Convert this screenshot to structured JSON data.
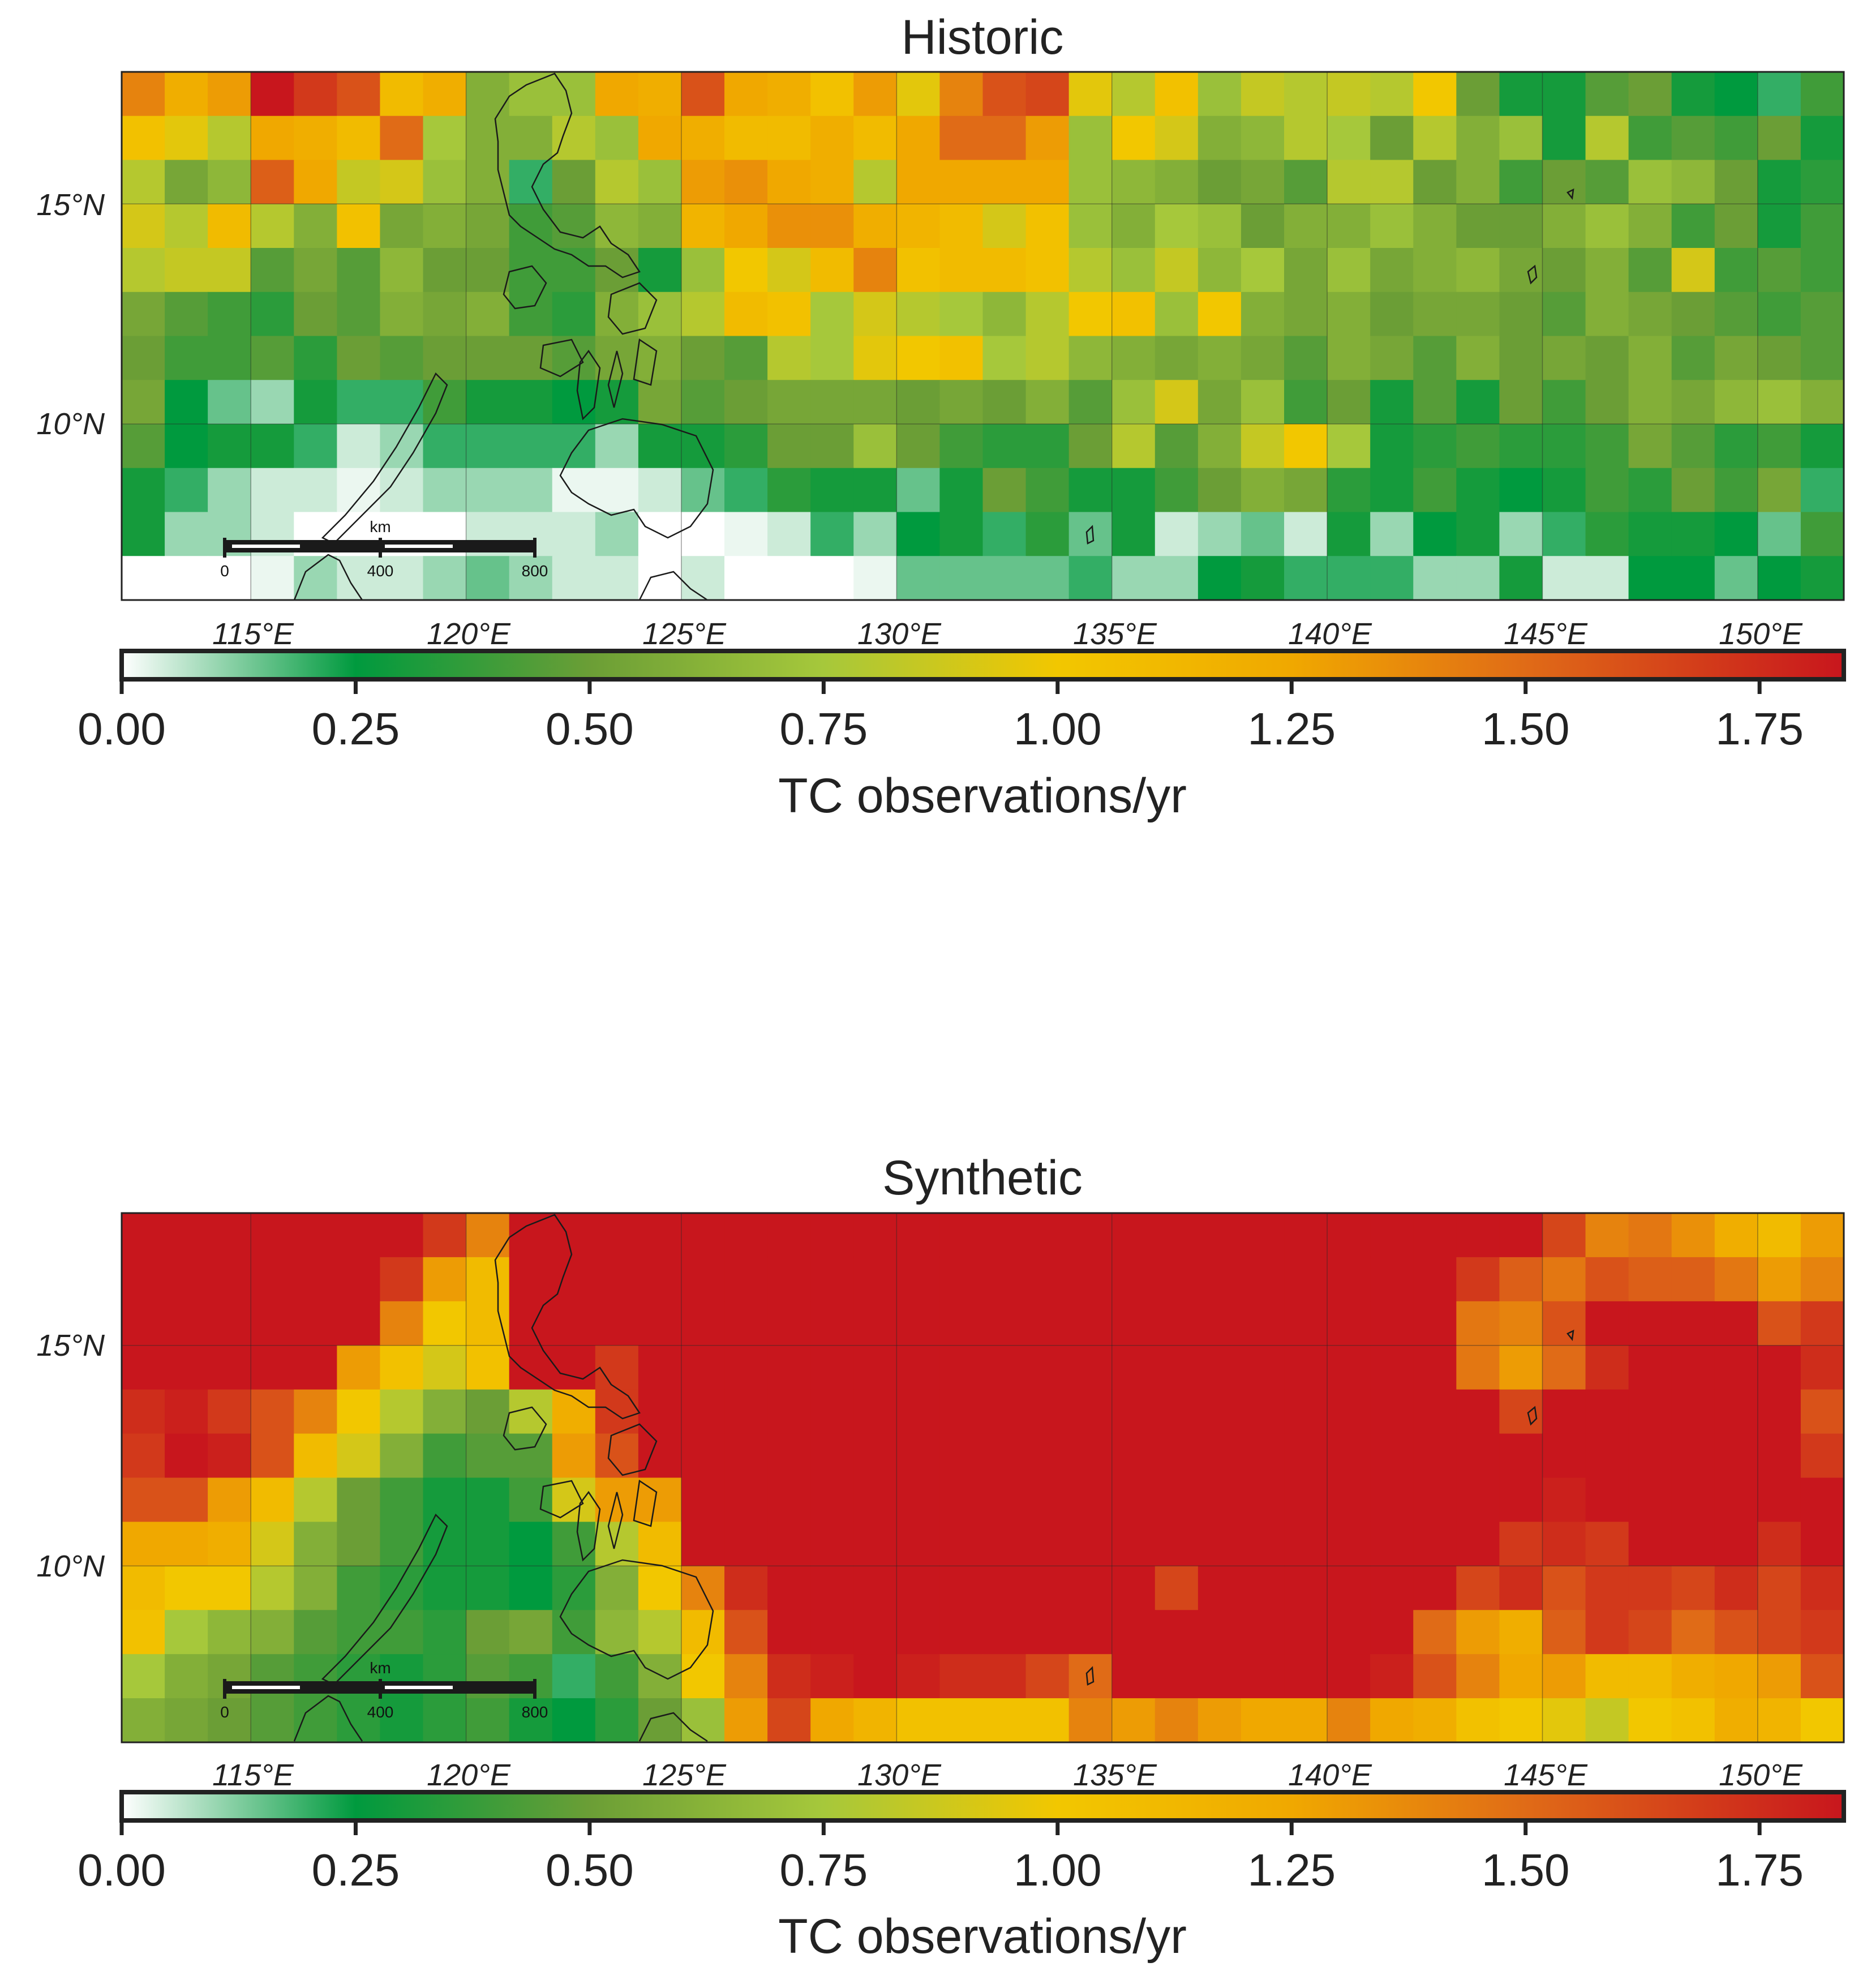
{
  "colormap": {
    "vmin": 0,
    "vmax": 1.84,
    "stops": [
      [
        0.0,
        "#ffffff"
      ],
      [
        0.25,
        "#009a3e"
      ],
      [
        0.5,
        "#6b9e36"
      ],
      [
        0.75,
        "#a6c83b"
      ],
      [
        1.0,
        "#f2c700"
      ],
      [
        1.25,
        "#f0a800"
      ],
      [
        1.5,
        "#e06b17"
      ],
      [
        1.84,
        "#c8161d"
      ]
    ]
  },
  "panels": [
    {
      "title": "Historic",
      "y_ticks": [
        "15°N",
        "10°N"
      ],
      "x_ticks": [
        "115°E",
        "120°E",
        "125°E",
        "130°E",
        "135°E",
        "140°E",
        "145°E",
        "150°E"
      ],
      "colorbar": {
        "ticks": [
          "0.00",
          "0.25",
          "0.50",
          "0.75",
          "1.00",
          "1.25",
          "1.50",
          "1.75"
        ],
        "label": "TC observations/yr"
      },
      "scalebar": {
        "unit": "km",
        "labels": [
          "0",
          "400",
          "800"
        ]
      }
    },
    {
      "title": "Synthetic",
      "y_ticks": [
        "15°N",
        "10°N"
      ],
      "x_ticks": [
        "115°E",
        "120°E",
        "125°E",
        "130°E",
        "135°E",
        "140°E",
        "145°E",
        "150°E"
      ],
      "colorbar": {
        "ticks": [
          "0.00",
          "0.25",
          "0.50",
          "0.75",
          "1.00",
          "1.25",
          "1.50",
          "1.75"
        ],
        "label": "TC observations/yr"
      },
      "scalebar": {
        "unit": "km",
        "labels": [
          "0",
          "400",
          "800"
        ]
      }
    }
  ],
  "chart_data": [
    {
      "type": "heatmap",
      "title": "Historic",
      "colorbar_label": "TC observations/yr",
      "lon_range_degE": [
        112,
        152
      ],
      "lat_range_degN": [
        6,
        18
      ],
      "cell_size_deg": 1,
      "rows_order": "north_to_south",
      "values": [
        [
          1.4,
          1.2,
          1.3,
          1.84,
          1.7,
          1.6,
          1.1,
          1.2,
          0.6,
          0.7,
          0.7,
          1.25,
          1.2,
          1.6,
          1.25,
          1.2,
          1.05,
          1.3,
          0.95,
          1.4,
          1.6,
          1.65,
          0.95,
          0.8,
          1.05,
          0.7,
          0.85,
          0.8,
          0.85,
          0.8,
          1.0,
          0.5,
          0.3,
          0.3,
          0.45,
          0.5,
          0.3,
          0.25,
          0.2,
          0.4
        ],
        [
          1.05,
          0.95,
          0.8,
          1.25,
          1.2,
          1.1,
          1.5,
          0.75,
          0.6,
          0.6,
          0.8,
          0.7,
          1.25,
          1.2,
          1.1,
          1.1,
          1.2,
          1.1,
          1.25,
          1.5,
          1.5,
          1.3,
          0.7,
          1.0,
          0.9,
          0.6,
          0.65,
          0.8,
          0.75,
          0.5,
          0.8,
          0.6,
          0.7,
          0.3,
          0.8,
          0.4,
          0.45,
          0.4,
          0.5,
          0.3
        ],
        [
          0.8,
          0.55,
          0.65,
          1.55,
          1.25,
          0.85,
          0.9,
          0.7,
          0.6,
          0.2,
          0.5,
          0.8,
          0.7,
          1.3,
          1.35,
          1.25,
          1.2,
          0.8,
          1.25,
          1.25,
          1.25,
          1.25,
          0.7,
          0.65,
          0.6,
          0.5,
          0.55,
          0.45,
          0.8,
          0.8,
          0.5,
          0.6,
          0.4,
          0.5,
          0.45,
          0.7,
          0.65,
          0.5,
          0.3,
          0.35
        ],
        [
          0.9,
          0.8,
          1.1,
          0.8,
          0.6,
          1.05,
          0.55,
          0.6,
          0.55,
          0.4,
          0.45,
          0.65,
          0.6,
          1.15,
          1.25,
          1.35,
          1.35,
          1.2,
          1.15,
          1.1,
          0.9,
          1.05,
          0.7,
          0.6,
          0.75,
          0.7,
          0.5,
          0.6,
          0.6,
          0.7,
          0.6,
          0.5,
          0.5,
          0.6,
          0.7,
          0.6,
          0.4,
          0.5,
          0.3,
          0.4
        ],
        [
          0.8,
          0.85,
          0.85,
          0.45,
          0.55,
          0.45,
          0.65,
          0.5,
          0.5,
          0.4,
          0.4,
          0.5,
          0.3,
          0.7,
          1.0,
          0.9,
          1.1,
          1.4,
          1.05,
          1.1,
          1.1,
          1.05,
          0.8,
          0.7,
          0.85,
          0.65,
          0.75,
          0.55,
          0.7,
          0.55,
          0.6,
          0.65,
          0.55,
          0.5,
          0.6,
          0.45,
          0.9,
          0.4,
          0.45,
          0.4
        ],
        [
          0.55,
          0.45,
          0.4,
          0.35,
          0.5,
          0.45,
          0.6,
          0.55,
          0.6,
          0.4,
          0.35,
          0.6,
          0.7,
          0.8,
          1.1,
          1.05,
          0.75,
          0.9,
          0.8,
          0.75,
          0.65,
          0.8,
          1.0,
          1.05,
          0.7,
          1.0,
          0.6,
          0.55,
          0.6,
          0.5,
          0.55,
          0.55,
          0.5,
          0.45,
          0.6,
          0.55,
          0.5,
          0.45,
          0.4,
          0.45
        ],
        [
          0.5,
          0.4,
          0.4,
          0.45,
          0.35,
          0.5,
          0.45,
          0.5,
          0.5,
          0.5,
          0.45,
          0.55,
          0.6,
          0.5,
          0.45,
          0.8,
          0.75,
          0.95,
          1.0,
          1.05,
          0.75,
          0.8,
          0.65,
          0.6,
          0.55,
          0.6,
          0.55,
          0.45,
          0.6,
          0.55,
          0.45,
          0.6,
          0.5,
          0.55,
          0.5,
          0.6,
          0.45,
          0.55,
          0.5,
          0.45
        ],
        [
          0.55,
          0.25,
          0.15,
          0.1,
          0.3,
          0.2,
          0.2,
          0.4,
          0.3,
          0.3,
          0.25,
          0.3,
          0.55,
          0.45,
          0.5,
          0.55,
          0.55,
          0.55,
          0.5,
          0.55,
          0.5,
          0.6,
          0.45,
          0.7,
          0.9,
          0.55,
          0.7,
          0.4,
          0.5,
          0.3,
          0.45,
          0.3,
          0.5,
          0.4,
          0.5,
          0.6,
          0.55,
          0.65,
          0.7,
          0.6
        ],
        [
          0.45,
          0.25,
          0.3,
          0.3,
          0.2,
          0.05,
          0.1,
          0.2,
          0.2,
          0.2,
          0.2,
          0.1,
          0.3,
          0.3,
          0.35,
          0.5,
          0.5,
          0.7,
          0.5,
          0.4,
          0.35,
          0.35,
          0.5,
          0.8,
          0.45,
          0.6,
          0.85,
          1.0,
          0.75,
          0.3,
          0.35,
          0.4,
          0.35,
          0.35,
          0.4,
          0.55,
          0.45,
          0.35,
          0.4,
          0.3
        ],
        [
          0.3,
          0.2,
          0.1,
          0.05,
          0.05,
          0.02,
          0.05,
          0.1,
          0.1,
          0.1,
          0.02,
          0.02,
          0.05,
          0.15,
          0.2,
          0.35,
          0.3,
          0.3,
          0.15,
          0.3,
          0.5,
          0.4,
          0.3,
          0.3,
          0.4,
          0.5,
          0.6,
          0.55,
          0.35,
          0.3,
          0.4,
          0.3,
          0.25,
          0.3,
          0.4,
          0.35,
          0.5,
          0.4,
          0.55,
          0.2
        ],
        [
          0.3,
          0.1,
          0.1,
          0.05,
          0.0,
          0.0,
          0.0,
          0.0,
          0.05,
          0.05,
          0.05,
          0.1,
          0.0,
          0.0,
          0.02,
          0.05,
          0.2,
          0.1,
          0.25,
          0.3,
          0.2,
          0.35,
          0.15,
          0.3,
          0.05,
          0.1,
          0.15,
          0.05,
          0.3,
          0.1,
          0.25,
          0.3,
          0.1,
          0.2,
          0.35,
          0.3,
          0.3,
          0.25,
          0.15,
          0.4
        ],
        [
          0.0,
          0.0,
          0.0,
          0.02,
          0.1,
          0.05,
          0.05,
          0.1,
          0.15,
          0.1,
          0.05,
          0.05,
          0.0,
          0.05,
          0.0,
          0.0,
          0.0,
          0.02,
          0.15,
          0.15,
          0.15,
          0.15,
          0.2,
          0.1,
          0.1,
          0.25,
          0.3,
          0.2,
          0.2,
          0.2,
          0.1,
          0.1,
          0.3,
          0.05,
          0.05,
          0.25,
          0.25,
          0.15,
          0.25,
          0.3
        ]
      ]
    },
    {
      "type": "heatmap",
      "title": "Synthetic",
      "colorbar_label": "TC observations/yr",
      "lon_range_degE": [
        112,
        152
      ],
      "lat_range_degN": [
        6,
        18
      ],
      "cell_size_deg": 1,
      "rows_order": "north_to_south",
      "values": [
        [
          1.84,
          1.84,
          1.84,
          1.84,
          1.84,
          1.84,
          1.84,
          1.7,
          1.4,
          1.84,
          1.84,
          1.84,
          1.84,
          1.84,
          1.84,
          1.84,
          1.84,
          1.84,
          1.84,
          1.84,
          1.84,
          1.84,
          1.84,
          1.84,
          1.84,
          1.84,
          1.84,
          1.84,
          1.84,
          1.84,
          1.84,
          1.84,
          1.84,
          1.65,
          1.4,
          1.45,
          1.35,
          1.2,
          1.1,
          1.3
        ],
        [
          1.84,
          1.84,
          1.84,
          1.84,
          1.84,
          1.84,
          1.7,
          1.3,
          1.1,
          1.84,
          1.84,
          1.84,
          1.84,
          1.84,
          1.84,
          1.84,
          1.84,
          1.84,
          1.84,
          1.84,
          1.84,
          1.84,
          1.84,
          1.84,
          1.84,
          1.84,
          1.84,
          1.84,
          1.84,
          1.84,
          1.84,
          1.7,
          1.55,
          1.45,
          1.6,
          1.55,
          1.55,
          1.45,
          1.3,
          1.4
        ],
        [
          1.84,
          1.84,
          1.84,
          1.84,
          1.84,
          1.84,
          1.4,
          1.0,
          1.1,
          1.84,
          1.84,
          1.84,
          1.84,
          1.84,
          1.84,
          1.84,
          1.84,
          1.84,
          1.84,
          1.84,
          1.84,
          1.84,
          1.84,
          1.84,
          1.84,
          1.84,
          1.84,
          1.84,
          1.84,
          1.84,
          1.84,
          1.45,
          1.4,
          1.6,
          1.84,
          1.84,
          1.84,
          1.84,
          1.6,
          1.7
        ],
        [
          1.84,
          1.84,
          1.84,
          1.84,
          1.84,
          1.3,
          1.05,
          0.9,
          1.05,
          1.84,
          1.84,
          1.7,
          1.84,
          1.84,
          1.84,
          1.84,
          1.84,
          1.84,
          1.84,
          1.84,
          1.84,
          1.84,
          1.84,
          1.84,
          1.84,
          1.84,
          1.84,
          1.84,
          1.84,
          1.84,
          1.84,
          1.45,
          1.3,
          1.5,
          1.75,
          1.84,
          1.84,
          1.84,
          1.84,
          1.75
        ],
        [
          1.75,
          1.8,
          1.7,
          1.6,
          1.4,
          1.0,
          0.8,
          0.6,
          0.5,
          0.8,
          1.2,
          1.7,
          1.84,
          1.84,
          1.84,
          1.84,
          1.84,
          1.84,
          1.84,
          1.84,
          1.84,
          1.84,
          1.84,
          1.84,
          1.84,
          1.84,
          1.84,
          1.84,
          1.84,
          1.84,
          1.84,
          1.84,
          1.65,
          1.84,
          1.84,
          1.84,
          1.84,
          1.84,
          1.84,
          1.6
        ],
        [
          1.7,
          1.84,
          1.8,
          1.6,
          1.1,
          0.9,
          0.6,
          0.4,
          0.45,
          0.45,
          1.3,
          1.6,
          1.84,
          1.84,
          1.84,
          1.84,
          1.84,
          1.84,
          1.84,
          1.84,
          1.84,
          1.84,
          1.84,
          1.84,
          1.84,
          1.84,
          1.84,
          1.84,
          1.84,
          1.84,
          1.84,
          1.84,
          1.84,
          1.84,
          1.84,
          1.84,
          1.84,
          1.84,
          1.84,
          1.7
        ],
        [
          1.6,
          1.6,
          1.3,
          1.1,
          0.8,
          0.5,
          0.4,
          0.3,
          0.3,
          0.4,
          0.9,
          1.3,
          1.3,
          1.84,
          1.84,
          1.84,
          1.84,
          1.84,
          1.84,
          1.84,
          1.84,
          1.84,
          1.84,
          1.84,
          1.84,
          1.84,
          1.84,
          1.84,
          1.84,
          1.84,
          1.84,
          1.84,
          1.84,
          1.8,
          1.84,
          1.84,
          1.84,
          1.84,
          1.84,
          1.84
        ],
        [
          1.25,
          1.25,
          1.2,
          0.9,
          0.6,
          0.5,
          0.4,
          0.3,
          0.3,
          0.25,
          0.4,
          0.8,
          1.1,
          1.84,
          1.84,
          1.84,
          1.84,
          1.84,
          1.84,
          1.84,
          1.84,
          1.84,
          1.84,
          1.84,
          1.84,
          1.84,
          1.84,
          1.84,
          1.84,
          1.84,
          1.84,
          1.84,
          1.7,
          1.75,
          1.7,
          1.84,
          1.84,
          1.84,
          1.75,
          1.84
        ],
        [
          1.1,
          1.0,
          1.0,
          0.8,
          0.6,
          0.4,
          0.35,
          0.3,
          0.3,
          0.25,
          0.35,
          0.6,
          1.0,
          1.4,
          1.75,
          1.84,
          1.84,
          1.84,
          1.84,
          1.84,
          1.84,
          1.84,
          1.84,
          1.84,
          1.65,
          1.84,
          1.84,
          1.84,
          1.84,
          1.84,
          1.84,
          1.65,
          1.75,
          1.6,
          1.7,
          1.7,
          1.65,
          1.75,
          1.65,
          1.75
        ],
        [
          1.05,
          0.75,
          0.65,
          0.6,
          0.45,
          0.4,
          0.4,
          0.35,
          0.5,
          0.55,
          0.4,
          0.65,
          0.8,
          1.1,
          1.6,
          1.84,
          1.84,
          1.84,
          1.84,
          1.84,
          1.84,
          1.84,
          1.84,
          1.84,
          1.84,
          1.84,
          1.84,
          1.84,
          1.84,
          1.84,
          1.5,
          1.3,
          1.2,
          1.55,
          1.7,
          1.65,
          1.5,
          1.6,
          1.65,
          1.7
        ],
        [
          0.75,
          0.6,
          0.55,
          0.45,
          0.4,
          0.35,
          0.3,
          0.35,
          0.45,
          0.4,
          0.2,
          0.4,
          0.6,
          1.0,
          1.4,
          1.75,
          1.8,
          1.84,
          1.8,
          1.75,
          1.75,
          1.65,
          1.5,
          1.84,
          1.84,
          1.84,
          1.84,
          1.84,
          1.84,
          1.8,
          1.6,
          1.4,
          1.25,
          1.3,
          1.1,
          1.1,
          1.2,
          1.25,
          1.3,
          1.6
        ],
        [
          0.6,
          0.55,
          0.5,
          0.45,
          0.4,
          0.35,
          0.3,
          0.35,
          0.4,
          0.3,
          0.25,
          0.35,
          0.5,
          0.7,
          1.3,
          1.65,
          1.25,
          1.15,
          1.05,
          1.05,
          1.05,
          1.05,
          1.4,
          1.3,
          1.4,
          1.3,
          1.25,
          1.25,
          1.4,
          1.25,
          1.2,
          1.05,
          1.0,
          0.95,
          0.85,
          1.0,
          1.05,
          1.2,
          1.15,
          1.0
        ]
      ]
    }
  ]
}
